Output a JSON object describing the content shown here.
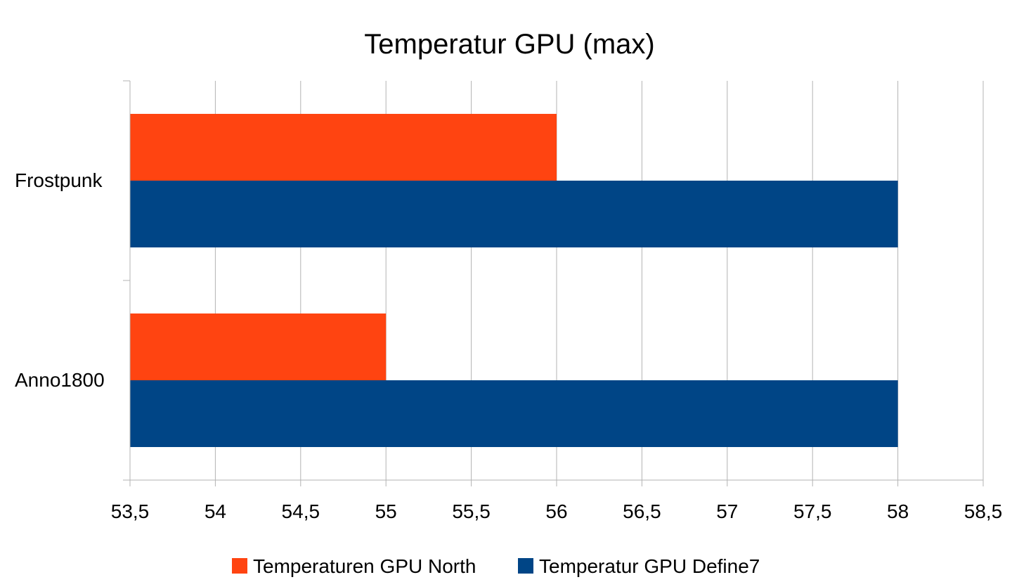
{
  "chart_data": {
    "type": "bar",
    "orientation": "horizontal",
    "title": "Temperatur GPU (max)",
    "categories": [
      "Frostpunk",
      "Anno1800"
    ],
    "series": [
      {
        "name": "Temperaturen GPU North",
        "color": "#ff4411",
        "values": [
          56,
          55
        ]
      },
      {
        "name": "Temperatur GPU Define7",
        "color": "#004586",
        "values": [
          58,
          58
        ]
      }
    ],
    "xlim": [
      53.5,
      58.5
    ],
    "xticks": [
      53.5,
      54,
      54.5,
      55,
      55.5,
      56,
      56.5,
      57,
      57.5,
      58,
      58.5
    ],
    "xtick_labels": [
      "53,5",
      "54",
      "54,5",
      "55",
      "55,5",
      "56",
      "56,5",
      "57",
      "57,5",
      "58",
      "58,5"
    ],
    "grid": true,
    "legend_position": "bottom"
  }
}
